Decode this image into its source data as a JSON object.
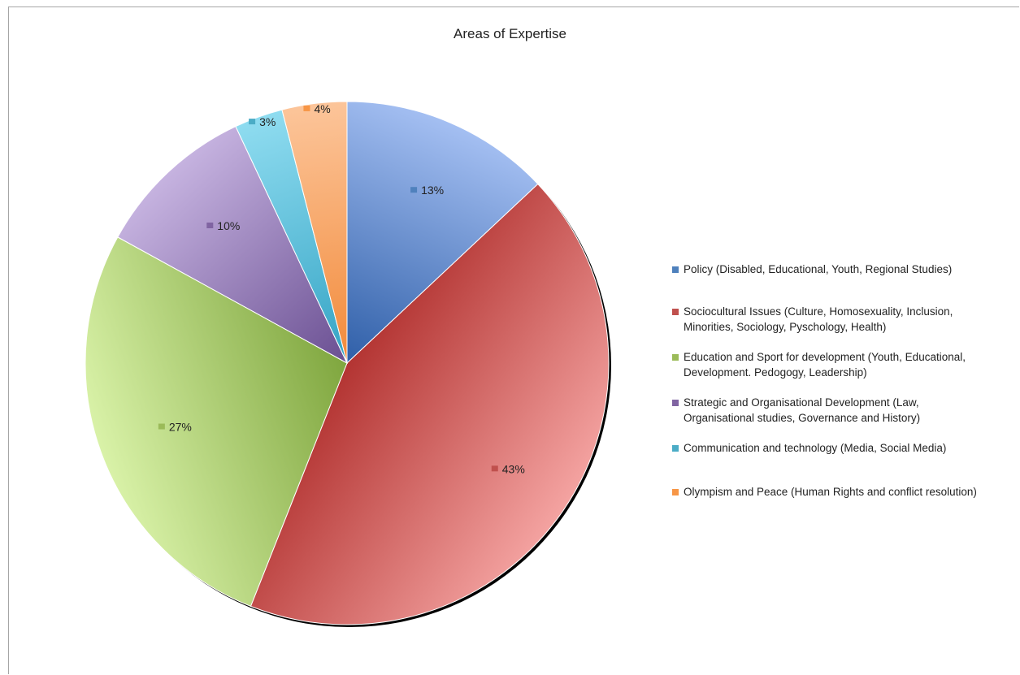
{
  "chart_data": {
    "type": "pie",
    "title": "Areas of Expertise",
    "slices": [
      {
        "name": "Policy (Disabled, Educational,  Youth, Regional Studies)",
        "lines": [
          "Policy (Disabled, Educational,  Youth, Regional Studies)"
        ],
        "value": 13,
        "label": "13%",
        "color": "#4f81bd",
        "light": "#a4bff2",
        "dark": "#2f5fa8"
      },
      {
        "name": "Sociocultural Issues (Culture, Homosexuality, Inclusion, Minorities, Sociology, Pyschology, Health)",
        "lines": [
          "Sociocultural Issues (Culture, Homosexuality, Inclusion,",
          "Minorities, Sociology, Pyschology, Health)"
        ],
        "value": 43,
        "label": "43%",
        "color": "#c0504d",
        "light": "#f4a3a1",
        "dark": "#b33432"
      },
      {
        "name": "Education and Sport for development (Youth, Educational, Development. Pedogogy, Leadership)",
        "lines": [
          "Education and Sport for development (Youth, Educational,",
          "Development. Pedogogy, Leadership)"
        ],
        "value": 27,
        "label": "27%",
        "color": "#9bbb59",
        "light": "#d9f2a8",
        "dark": "#7fa63e"
      },
      {
        "name": "Strategic and Organisational  Development (Law, Organisational studies, Governance and History)",
        "lines": [
          "Strategic and Organisational  Development (Law,",
          "Organisational studies, Governance and History)"
        ],
        "value": 10,
        "label": "10%",
        "color": "#8064a2",
        "light": "#c6b3e0",
        "dark": "#6a4f92"
      },
      {
        "name": "Communication and technology (Media, Social Media)",
        "lines": [
          "Communication and technology (Media, Social Media)"
        ],
        "value": 3,
        "label": "3%",
        "color": "#4bacc6",
        "light": "#8fdcf0",
        "dark": "#33a3c4"
      },
      {
        "name": "Olympism and Peace (Human Rights and conflict resolution)",
        "lines": [
          "Olympism and Peace (Human Rights and conflict resolution)"
        ],
        "value": 4,
        "label": "4%",
        "color": "#f79646",
        "light": "#fcc59a",
        "dark": "#f28a3a"
      }
    ],
    "legend_position": "right",
    "start_angle_deg": 0,
    "direction": "clockwise"
  }
}
